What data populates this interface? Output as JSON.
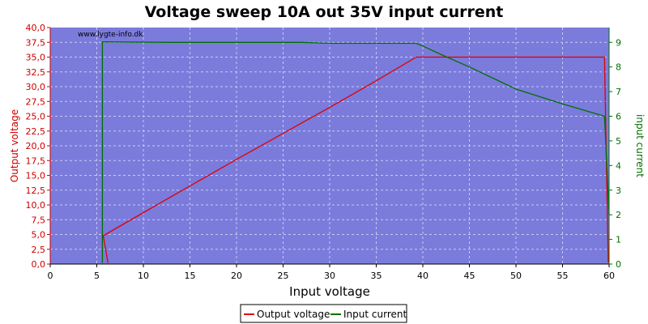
{
  "chart_data": {
    "type": "line",
    "title": "Voltage sweep 10A out 35V input current",
    "watermark": "www.lygte-info.dk",
    "xlabel": "Input voltage",
    "ylabel_left": "Output voltage",
    "ylabel_right": "input current",
    "xlim": [
      0,
      60
    ],
    "ylim_left": [
      0,
      40
    ],
    "ylim_right": [
      0,
      9.6
    ],
    "x_ticks": [
      "0",
      "5",
      "10",
      "15",
      "20",
      "25",
      "30",
      "35",
      "40",
      "45",
      "50",
      "55",
      "60"
    ],
    "y_left_ticks": [
      "0,0",
      "2,5",
      "5,0",
      "7,5",
      "10,0",
      "12,5",
      "15,0",
      "17,5",
      "20,0",
      "22,5",
      "25,0",
      "27,5",
      "30,0",
      "32,5",
      "35,0",
      "37,5",
      "40,0"
    ],
    "y_right_ticks": [
      "0",
      "1",
      "2",
      "3",
      "4",
      "5",
      "6",
      "7",
      "8",
      "9"
    ],
    "grid": true,
    "legend_position": "bottom-center",
    "colors": {
      "plot_background": "#7b7bdc",
      "grid": "#c9c9f0",
      "output_voltage": "#e00000",
      "input_current": "#007000",
      "left_axis": "#cc0000",
      "right_axis": "#007000"
    },
    "series": [
      {
        "name": "Output voltage",
        "axis": "left",
        "x": [
          6.2,
          5.7,
          10,
          15,
          20,
          25,
          30,
          35,
          39.3,
          45,
          50,
          55,
          59.5,
          59.9
        ],
        "y": [
          0.2,
          4.8,
          8.7,
          13.2,
          17.7,
          22.1,
          26.5,
          31.0,
          35.0,
          35.0,
          35.0,
          35.0,
          35.0,
          0.3
        ]
      },
      {
        "name": "Input current",
        "axis": "left_scaled_right",
        "x": [
          5.6,
          5.6,
          13,
          27,
          30,
          39.3,
          40,
          42,
          45,
          50,
          55,
          59.5,
          60
        ],
        "y": [
          0.05,
          9.02,
          9.0,
          9.0,
          8.96,
          8.96,
          8.85,
          8.5,
          8.0,
          7.1,
          6.5,
          6.0,
          2.0
        ]
      }
    ]
  }
}
